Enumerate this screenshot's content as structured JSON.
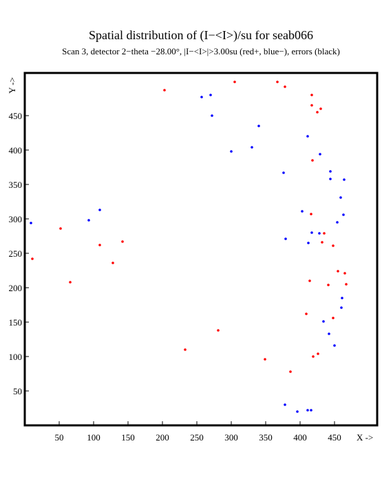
{
  "chart_data": {
    "type": "scatter",
    "title": "Spatial distribution of (I−<I>)/su for seab066",
    "subtitle": "Scan  3, detector 2−theta −28.00°, |I−<I>|>3.00su (red+, blue−), errors (black)",
    "x_label": "X ->",
    "y_label": "Y ->",
    "xlim": [
      0,
      512
    ],
    "ylim": [
      0,
      512
    ],
    "xticks": [
      50,
      100,
      150,
      200,
      250,
      300,
      350,
      400,
      450
    ],
    "yticks": [
      50,
      100,
      150,
      200,
      250,
      300,
      350,
      400,
      450
    ],
    "series": [
      {
        "color": "#ff0000",
        "x": [
          203,
          305,
          367,
          378,
          417,
          417,
          430,
          425,
          418,
          416,
          435,
          52,
          432,
          448,
          142,
          109,
          11,
          128,
          455,
          465,
          414,
          66,
          441,
          467,
          409,
          448,
          281,
          233,
          426,
          419,
          349,
          386
        ],
        "values": [
          487,
          499,
          499,
          492,
          480,
          465,
          460,
          455,
          385,
          307,
          279,
          286,
          266,
          261,
          267,
          262,
          242,
          236,
          224,
          221,
          210,
          208,
          204,
          205,
          162,
          156,
          138,
          110,
          104,
          100,
          96,
          78
        ]
      },
      {
        "color": "#0000ff",
        "x": [
          257,
          270,
          272,
          340,
          411,
          330,
          300,
          429,
          376,
          444,
          464,
          444,
          459,
          109,
          403,
          463,
          93,
          9,
          454,
          417,
          428,
          379,
          412,
          461,
          460,
          434,
          442,
          450,
          378,
          396,
          411,
          416
        ],
        "values": [
          477,
          480,
          450,
          435,
          420,
          404,
          398,
          394,
          367,
          369,
          357,
          358,
          331,
          313,
          311,
          306,
          298,
          294,
          295,
          280,
          279,
          271,
          265,
          185,
          171,
          151,
          133,
          116,
          30,
          20,
          22,
          22
        ]
      }
    ]
  }
}
